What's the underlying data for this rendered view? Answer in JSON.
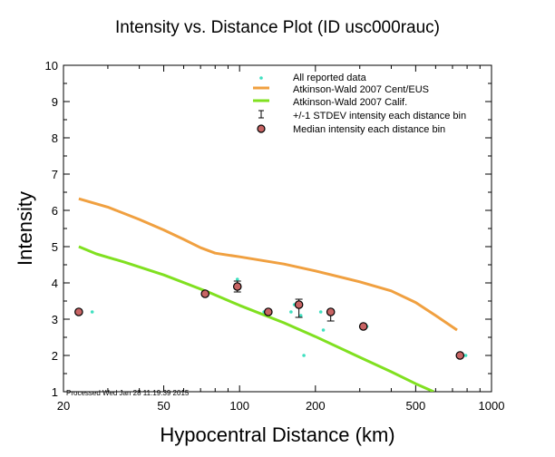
{
  "chart_data": {
    "type": "scatter",
    "title": "Intensity vs. Distance Plot (ID usc000rauc)",
    "xlabel": "Hypocentral Distance (km)",
    "ylabel": "Intensity",
    "x_scale": "log",
    "xlim": [
      20,
      1000
    ],
    "ylim": [
      1,
      10
    ],
    "x_ticks": [
      {
        "value": 20,
        "label": "20"
      },
      {
        "value": 50,
        "label": "50"
      },
      {
        "value": 100,
        "label": "100"
      },
      {
        "value": 200,
        "label": "200"
      },
      {
        "value": 500,
        "label": "500"
      },
      {
        "value": 1000,
        "label": "1000"
      }
    ],
    "y_ticks": [
      {
        "value": 1,
        "label": "1"
      },
      {
        "value": 2,
        "label": "2"
      },
      {
        "value": 3,
        "label": "3"
      },
      {
        "value": 4,
        "label": "4"
      },
      {
        "value": 5,
        "label": "5"
      },
      {
        "value": 6,
        "label": "6"
      },
      {
        "value": 7,
        "label": "7"
      },
      {
        "value": 8,
        "label": "8"
      },
      {
        "value": 9,
        "label": "9"
      },
      {
        "value": 10,
        "label": "10"
      }
    ],
    "grid": false,
    "legend_position": "top-right",
    "series": [
      {
        "name": "All reported data",
        "kind": "points",
        "color": "#40e0c0",
        "x": [
          26,
          98,
          100,
          125,
          160,
          165,
          175,
          180,
          210,
          215,
          320,
          790
        ],
        "y": [
          3.2,
          4.1,
          3.9,
          3.2,
          3.2,
          3.4,
          3.1,
          2.0,
          3.2,
          2.7,
          2.8,
          2.0
        ]
      },
      {
        "name": "Atkinson-Wald 2007 Cent/EUS",
        "kind": "line",
        "color": "#f0a040",
        "x": [
          23,
          30,
          40,
          50,
          60,
          70,
          80,
          100,
          150,
          200,
          300,
          400,
          500,
          600,
          730
        ],
        "y": [
          6.32,
          6.09,
          5.75,
          5.46,
          5.2,
          4.97,
          4.82,
          4.72,
          4.52,
          4.33,
          4.03,
          3.78,
          3.46,
          3.1,
          2.7
        ]
      },
      {
        "name": "Atkinson-Wald 2007 Calif.",
        "kind": "line",
        "color": "#80e020",
        "x": [
          23,
          27,
          35,
          50,
          75,
          100,
          150,
          200,
          300,
          400,
          500,
          590
        ],
        "y": [
          5.0,
          4.8,
          4.57,
          4.22,
          3.75,
          3.38,
          2.9,
          2.52,
          1.95,
          1.55,
          1.22,
          1.0
        ]
      },
      {
        "name": "+/-1 STDEV intensity each distance bin",
        "kind": "errorbar",
        "color": "#000000",
        "x": [
          98,
          172,
          230
        ],
        "y": [
          3.9,
          3.3,
          3.1
        ],
        "err": [
          0.15,
          0.25,
          0.15
        ]
      },
      {
        "name": "Median intensity each distance bin",
        "kind": "markers",
        "color": "#c86464",
        "x": [
          23,
          73,
          98,
          130,
          172,
          230,
          310,
          750
        ],
        "y": [
          3.2,
          3.7,
          3.9,
          3.2,
          3.4,
          3.2,
          2.8,
          2.0
        ]
      }
    ],
    "annotation": "Processed Wed Jan 28 11:19:39 2015"
  }
}
